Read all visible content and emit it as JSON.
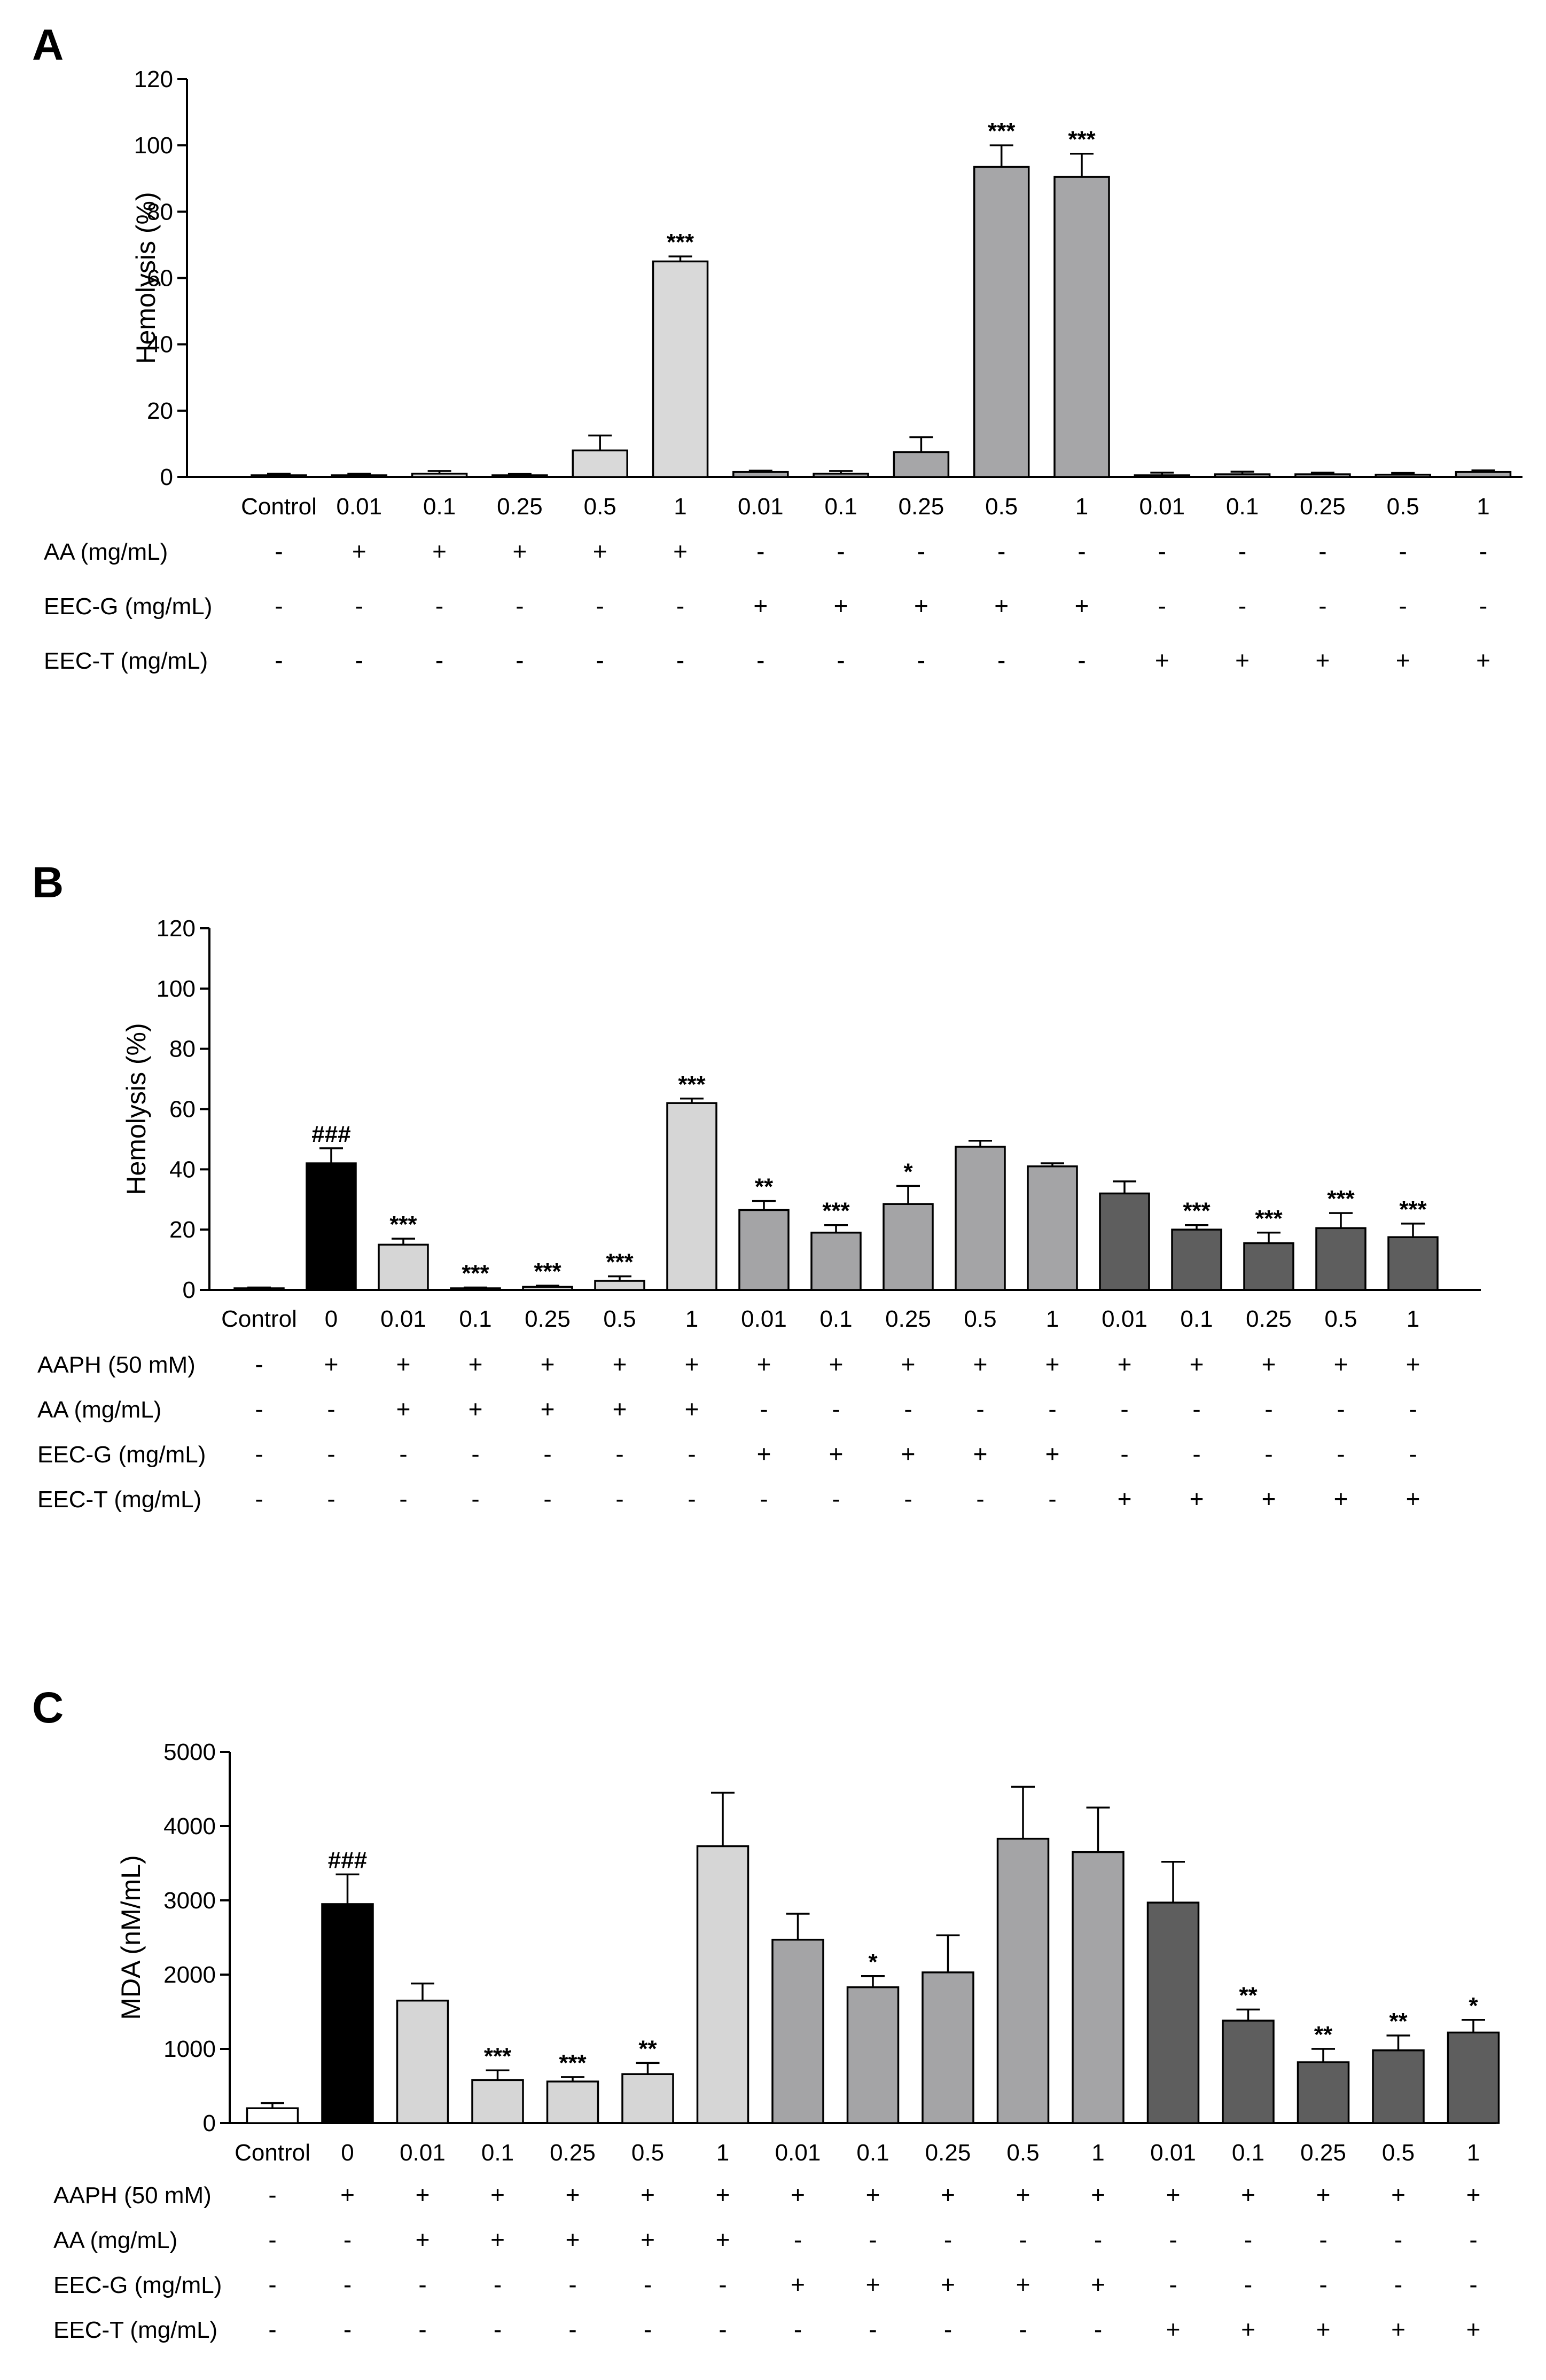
{
  "colors": {
    "white": "#ffffff",
    "black": "#000000",
    "AA": "#d6d6d6",
    "EEC-G": "#a4a4a6",
    "EEC-T": "#5e5e5e",
    "AA_A": "#d9d9d9",
    "EECG_A": "#a6a6a8"
  },
  "chart_data": [
    {
      "panel": "A",
      "type": "bar",
      "ylabel": "Hemolysis  (%)",
      "ylim": [
        0,
        120
      ],
      "yticks": [
        0,
        20,
        40,
        60,
        80,
        100,
        120
      ],
      "categories": [
        "Control",
        "0.01",
        "0.1",
        "0.25",
        "0.5",
        "1",
        "0.01",
        "0.1",
        "0.25",
        "0.5",
        "1",
        "0.01",
        "0.1",
        "0.25",
        "0.5",
        "1"
      ],
      "values": [
        0.5,
        0.5,
        1.0,
        0.5,
        8.0,
        65.0,
        1.5,
        1.0,
        7.5,
        93.5,
        90.5,
        0.5,
        0.8,
        0.8,
        0.7,
        1.5
      ],
      "errors": [
        0.5,
        0.5,
        0.8,
        0.4,
        4.5,
        1.5,
        0.4,
        0.8,
        4.5,
        6.5,
        7.0,
        0.8,
        0.8,
        0.5,
        0.5,
        0.5
      ],
      "annotations": [
        "",
        "",
        "",
        "",
        "",
        "***",
        "",
        "",
        "",
        "***",
        "***",
        "",
        "",
        "",
        "",
        ""
      ],
      "bar_colors": [
        "white",
        "AA_A",
        "AA_A",
        "AA_A",
        "AA_A",
        "AA_A",
        "EECG_A",
        "EECG_A",
        "EECG_A",
        "EECG_A",
        "EECG_A",
        "EECG_A",
        "EECG_A",
        "EECG_A",
        "EECG_A",
        "EECG_A"
      ],
      "condition_rows": [
        {
          "label": "AA (mg/mL)",
          "signs": [
            "-",
            "+",
            "+",
            "+",
            "+",
            "+",
            "-",
            "-",
            "-",
            "-",
            "-",
            "-",
            "-",
            "-",
            "-",
            "-"
          ]
        },
        {
          "label": "EEC-G (mg/mL)",
          "signs": [
            "-",
            "-",
            "-",
            "-",
            "-",
            "-",
            "+",
            "+",
            "+",
            "+",
            "+",
            "-",
            "-",
            "-",
            "-",
            "-"
          ]
        },
        {
          "label": "EEC-T (mg/mL)",
          "signs": [
            "-",
            "-",
            "-",
            "-",
            "-",
            "-",
            "-",
            "-",
            "-",
            "-",
            "-",
            "+",
            "+",
            "+",
            "+",
            "+"
          ]
        }
      ]
    },
    {
      "panel": "B",
      "type": "bar",
      "ylabel": "Hemolysis (%)",
      "ylim": [
        0,
        120
      ],
      "yticks": [
        0,
        20,
        40,
        60,
        80,
        100,
        120
      ],
      "categories": [
        "Control",
        "0",
        "0.01",
        "0.1",
        "0.25",
        "0.5",
        "1",
        "0.01",
        "0.1",
        "0.25",
        "0.5",
        "1",
        "0.01",
        "0.1",
        "0.25",
        "0.5",
        "1"
      ],
      "values": [
        0.5,
        42,
        15,
        0.5,
        1,
        3,
        62,
        26.5,
        19,
        28.5,
        47.5,
        41,
        32,
        20,
        15.5,
        20.5,
        17.5
      ],
      "errors": [
        0.3,
        5,
        2,
        0.3,
        0.4,
        1.5,
        1.5,
        3,
        2.5,
        6,
        2,
        1,
        4,
        1.5,
        3.5,
        5,
        4.5
      ],
      "annotations": [
        "",
        "###",
        "***",
        "***",
        "***",
        "***",
        "***",
        "**",
        "***",
        "*",
        "",
        "",
        "",
        "***",
        "***",
        "***",
        "***"
      ],
      "bar_colors": [
        "white",
        "black",
        "AA",
        "AA",
        "AA",
        "AA",
        "AA",
        "EEC-G",
        "EEC-G",
        "EEC-G",
        "EEC-G",
        "EEC-G",
        "EEC-T",
        "EEC-T",
        "EEC-T",
        "EEC-T",
        "EEC-T"
      ],
      "condition_rows": [
        {
          "label": "AAPH (50 mM)",
          "signs": [
            "-",
            "+",
            "+",
            "+",
            "+",
            "+",
            "+",
            "+",
            "+",
            "+",
            "+",
            "+",
            "+",
            "+",
            "+",
            "+",
            "+"
          ]
        },
        {
          "label": "AA (mg/mL)",
          "signs": [
            "-",
            "-",
            "+",
            "+",
            "+",
            "+",
            "+",
            "-",
            "-",
            "-",
            "-",
            "-",
            "-",
            "-",
            "-",
            "-",
            "-"
          ]
        },
        {
          "label": "EEC-G (mg/mL)",
          "signs": [
            "-",
            "-",
            "-",
            "-",
            "-",
            "-",
            "-",
            "+",
            "+",
            "+",
            "+",
            "+",
            "-",
            "-",
            "-",
            "-",
            "-"
          ]
        },
        {
          "label": "EEC-T (mg/mL)",
          "signs": [
            "-",
            "-",
            "-",
            "-",
            "-",
            "-",
            "-",
            "-",
            "-",
            "-",
            "-",
            "-",
            "+",
            "+",
            "+",
            "+",
            "+"
          ]
        }
      ]
    },
    {
      "panel": "C",
      "type": "bar",
      "ylabel": "MDA (nM/mL)",
      "ylim": [
        0,
        5000
      ],
      "yticks": [
        0,
        1000,
        2000,
        3000,
        4000,
        5000
      ],
      "categories": [
        "Control",
        "0",
        "0.01",
        "0.1",
        "0.25",
        "0.5",
        "1",
        "0.01",
        "0.1",
        "0.25",
        "0.5",
        "1",
        "0.01",
        "0.1",
        "0.25",
        "0.5",
        "1"
      ],
      "values": [
        200,
        2950,
        1650,
        580,
        560,
        660,
        3730,
        2470,
        1830,
        2030,
        3830,
        3650,
        2970,
        1380,
        820,
        980,
        1220
      ],
      "errors": [
        70,
        400,
        230,
        130,
        60,
        150,
        720,
        350,
        150,
        500,
        700,
        600,
        550,
        150,
        180,
        200,
        170
      ],
      "annotations": [
        "",
        "###",
        "",
        "***",
        "***",
        "**",
        "",
        "",
        "*",
        "",
        "",
        "",
        "",
        "**",
        "**",
        "**",
        "*"
      ],
      "bar_colors": [
        "white",
        "black",
        "AA",
        "AA",
        "AA",
        "AA",
        "AA",
        "EEC-G",
        "EEC-G",
        "EEC-G",
        "EEC-G",
        "EEC-G",
        "EEC-T",
        "EEC-T",
        "EEC-T",
        "EEC-T",
        "EEC-T"
      ],
      "condition_rows": [
        {
          "label": "AAPH (50 mM)",
          "signs": [
            "-",
            "+",
            "+",
            "+",
            "+",
            "+",
            "+",
            "+",
            "+",
            "+",
            "+",
            "+",
            "+",
            "+",
            "+",
            "+",
            "+"
          ]
        },
        {
          "label": "AA (mg/mL)",
          "signs": [
            "-",
            "-",
            "+",
            "+",
            "+",
            "+",
            "+",
            "-",
            "-",
            "-",
            "-",
            "-",
            "-",
            "-",
            "-",
            "-",
            "-"
          ]
        },
        {
          "label": "EEC-G (mg/mL)",
          "signs": [
            "-",
            "-",
            "-",
            "-",
            "-",
            "-",
            "-",
            "+",
            "+",
            "+",
            "+",
            "+",
            "-",
            "-",
            "-",
            "-",
            "-"
          ]
        },
        {
          "label": "EEC-T (mg/mL)",
          "signs": [
            "-",
            "-",
            "-",
            "-",
            "-",
            "-",
            "-",
            "-",
            "-",
            "-",
            "-",
            "-",
            "+",
            "+",
            "+",
            "+",
            "+"
          ]
        }
      ]
    }
  ]
}
